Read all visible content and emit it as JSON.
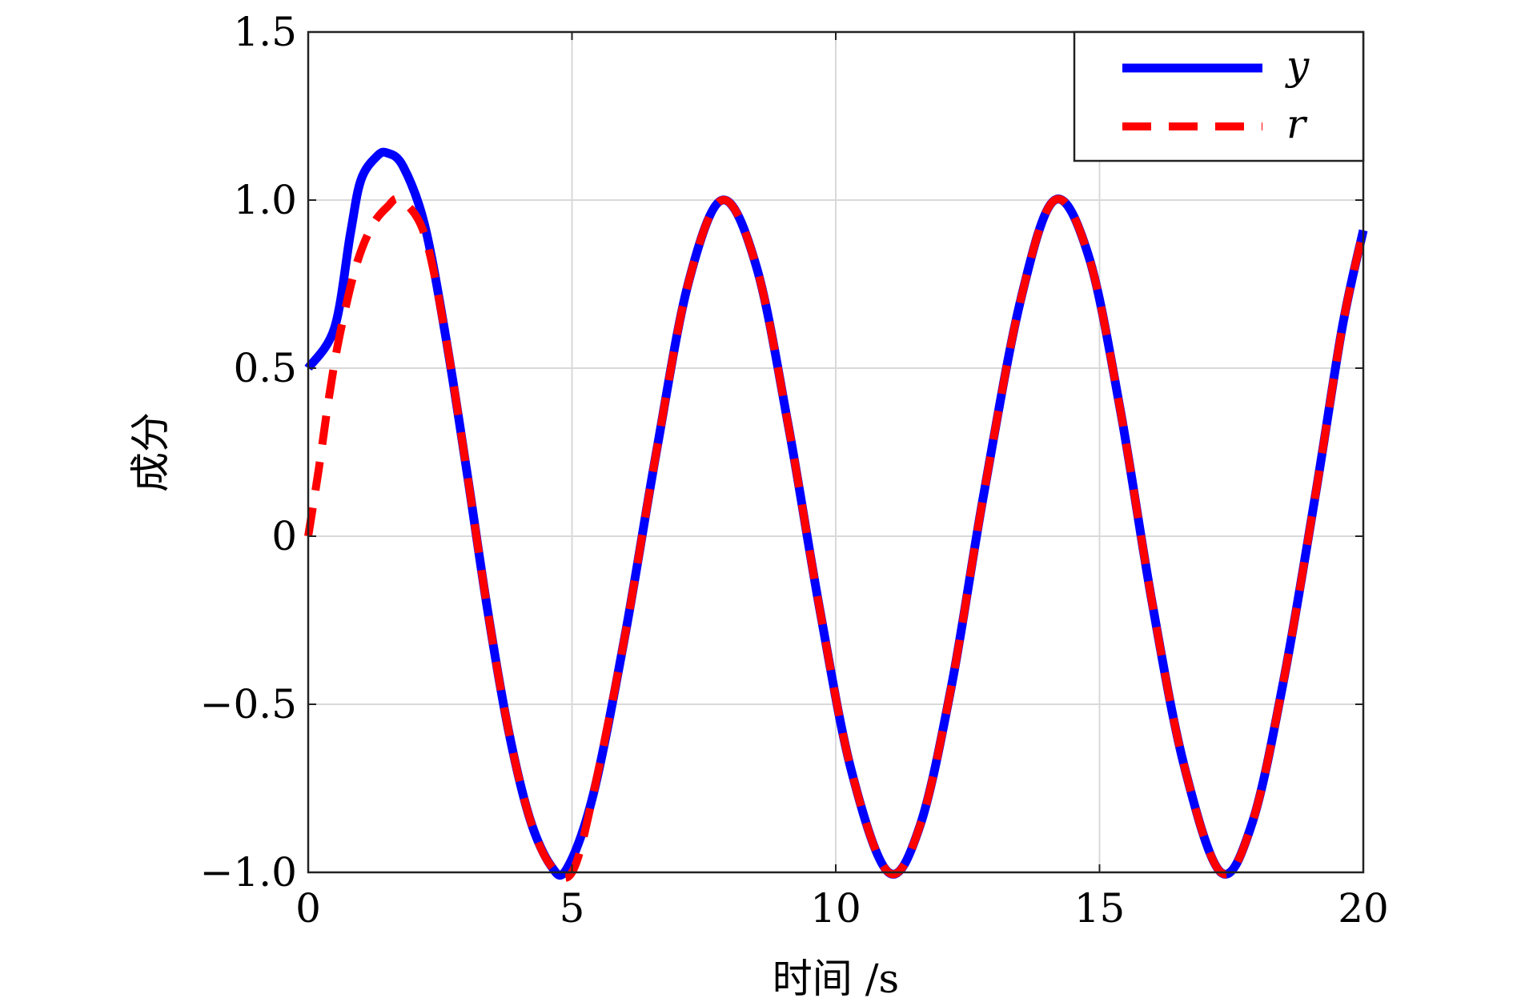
{
  "chart_data": {
    "type": "line",
    "title": "",
    "xlabel": "时间 /s",
    "ylabel": "成分",
    "xlim": [
      0,
      20
    ],
    "ylim": [
      -1.0,
      1.5
    ],
    "xticks": [
      0,
      5,
      10,
      15,
      20
    ],
    "xtick_labels": [
      "0",
      "5",
      "10",
      "15",
      "20"
    ],
    "yticks": [
      -1.0,
      -0.5,
      0,
      0.5,
      1.0,
      1.5
    ],
    "ytick_labels": [
      "−1.0",
      "−0.5",
      "0",
      "0.5",
      "1.0",
      "1.5"
    ],
    "grid": true,
    "legend_position": "top-right",
    "series": [
      {
        "name": "y",
        "color": "#0000ff",
        "style": "solid",
        "x": [
          0,
          0.5,
          0.8,
          1.0,
          1.3,
          1.5,
          1.8,
          2.2,
          2.6,
          3.0,
          3.4,
          3.8,
          4.2,
          4.6,
          4.9,
          5.4,
          6.0,
          6.6,
          7.2,
          7.85,
          8.5,
          9.1,
          9.7,
          10.3,
          11.0,
          11.6,
          12.2,
          12.8,
          13.5,
          14.15,
          14.8,
          15.4,
          16.0,
          16.6,
          17.3,
          17.9,
          18.5,
          19.1,
          19.6,
          20.0
        ],
        "y": [
          0.5,
          0.62,
          0.9,
          1.06,
          1.13,
          1.14,
          1.1,
          0.93,
          0.6,
          0.2,
          -0.22,
          -0.58,
          -0.84,
          -0.98,
          -0.99,
          -0.77,
          -0.3,
          0.25,
          0.75,
          1.0,
          0.8,
          0.33,
          -0.22,
          -0.7,
          -1.0,
          -0.86,
          -0.44,
          0.12,
          0.7,
          1.0,
          0.83,
          0.37,
          -0.2,
          -0.68,
          -1.0,
          -0.85,
          -0.42,
          0.13,
          0.62,
          0.91
        ]
      },
      {
        "name": "r",
        "color": "#ff0000",
        "style": "dashed",
        "x": [
          0,
          0.2,
          0.4,
          0.6,
          0.9,
          1.2,
          1.5,
          1.75,
          2.2,
          2.6,
          3.0,
          3.4,
          3.8,
          4.2,
          4.6,
          5.0,
          5.4,
          6.0,
          6.6,
          7.2,
          7.85,
          8.5,
          9.1,
          9.7,
          10.3,
          11.0,
          11.6,
          12.2,
          12.8,
          13.5,
          14.15,
          14.8,
          15.4,
          16.0,
          16.6,
          17.3,
          17.9,
          18.5,
          19.1,
          19.6,
          20.0
        ],
        "y": [
          0.0,
          0.2,
          0.42,
          0.6,
          0.8,
          0.92,
          0.98,
          1.0,
          0.9,
          0.6,
          0.2,
          -0.22,
          -0.58,
          -0.84,
          -0.98,
          -1.0,
          -0.77,
          -0.3,
          0.25,
          0.75,
          1.0,
          0.8,
          0.33,
          -0.22,
          -0.7,
          -1.0,
          -0.86,
          -0.44,
          0.12,
          0.7,
          1.0,
          0.83,
          0.37,
          -0.2,
          -0.68,
          -1.0,
          -0.85,
          -0.42,
          0.13,
          0.62,
          0.91
        ]
      }
    ]
  }
}
